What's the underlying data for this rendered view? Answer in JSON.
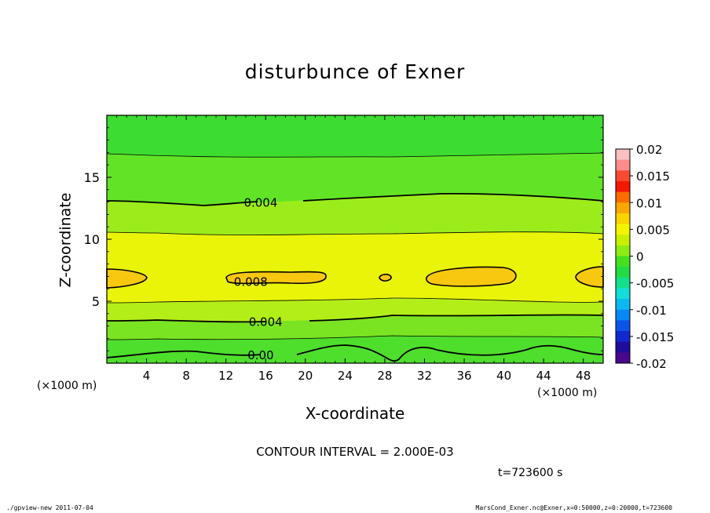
{
  "chart_data": {
    "type": "heatmap",
    "title": "disturbunce of Exner",
    "xlabel": "X-coordinate",
    "ylabel": "Z-coordinate",
    "x_unit": "(×1000 m)",
    "xlim": [
      0,
      50
    ],
    "ylim": [
      0,
      20
    ],
    "xticks": [
      4,
      8,
      12,
      16,
      20,
      24,
      28,
      32,
      36,
      40,
      44,
      48
    ],
    "yticks": [
      5,
      10,
      15
    ],
    "colorbar": {
      "range": [
        -0.02,
        0.02
      ],
      "ticks": [
        "0.02",
        "0.015",
        "0.01",
        "0.005",
        "0",
        "-0.005",
        "-0.01",
        "-0.015",
        "-0.02"
      ]
    },
    "contour_labels": [
      {
        "text": "0.004",
        "x": 15.5,
        "z": 13.0
      },
      {
        "text": "0.008",
        "x": 14.5,
        "z": 6.6
      },
      {
        "text": "0.004",
        "x": 16.0,
        "z": 3.4
      },
      {
        "text": "0.00",
        "x": 15.5,
        "z": 0.7
      }
    ],
    "contour_interval": "CONTOUR INTERVAL = 2.000E-03",
    "time": "t=723600 s"
  },
  "footer": {
    "left": "./gpview-new  2011-07-04",
    "right": "MarsCond_Exner.nc@Exner,x=0:50000,z=0:20000,t=723600"
  }
}
